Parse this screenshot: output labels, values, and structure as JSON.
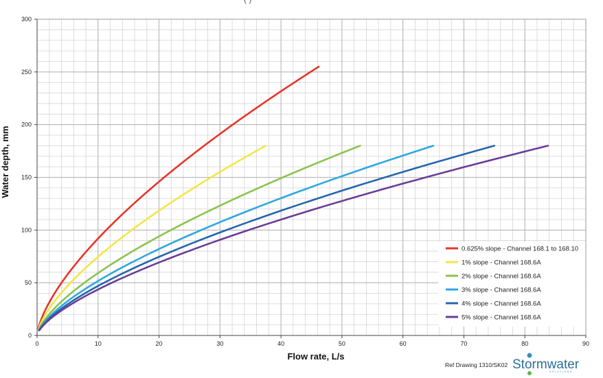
{
  "chart_data": {
    "type": "line",
    "title_fragment": "(                                   )",
    "xlabel": "Flow rate, L/s",
    "ylabel": "Water depth, mm",
    "xlim": [
      0,
      90
    ],
    "ylim": [
      0,
      300
    ],
    "x_ticks": [
      0,
      10,
      20,
      30,
      40,
      50,
      60,
      70,
      80,
      90
    ],
    "y_ticks": [
      0,
      50,
      100,
      150,
      200,
      250,
      300
    ],
    "grid": true,
    "legend_position": "bottom-right",
    "series": [
      {
        "name": "0.625% slope - Channel 168.1 to 168.10",
        "color": "#e8342a",
        "max_x": 46.2,
        "max_y": 255
      },
      {
        "name": "1% slope - Channel 168.6A",
        "color": "#f2e646",
        "max_x": 37.5,
        "max_y": 180
      },
      {
        "name": "2% slope - Channel 168.6A",
        "color": "#8cc24f",
        "max_x": 53.0,
        "max_y": 180
      },
      {
        "name": "3% slope - Channel 168.6A",
        "color": "#2ea7e0",
        "max_x": 65.0,
        "max_y": 180
      },
      {
        "name": "4% slope - Channel 168.6A",
        "color": "#2466ae",
        "max_x": 75.0,
        "max_y": 180
      },
      {
        "name": "5% slope - Channel 168.6A",
        "color": "#6a3d97",
        "max_x": 83.8,
        "max_y": 180
      }
    ]
  },
  "footer": {
    "ref_drawing": "Ref Drawing 1310/SK02",
    "brand_name": "Stormwater",
    "brand_tagline": "SOLUTIONS"
  }
}
